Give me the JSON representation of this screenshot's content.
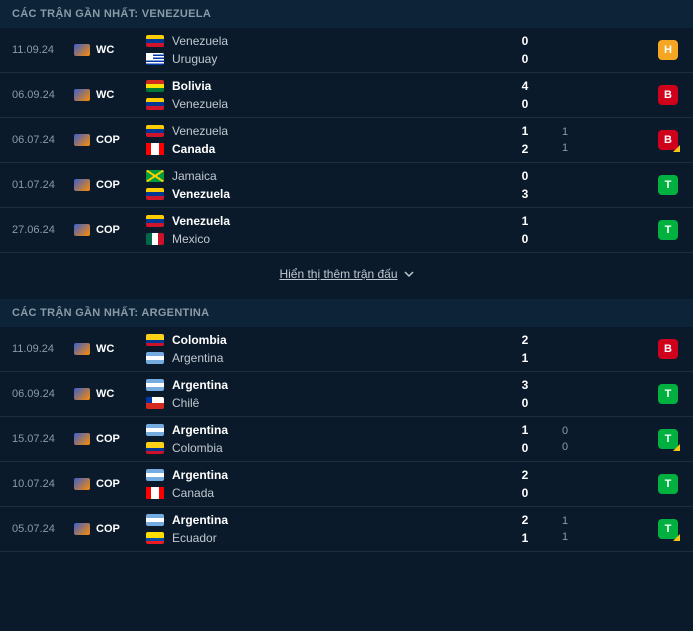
{
  "colors": {
    "background": "#0a1a2a",
    "header_bg": "#0d2438",
    "row_border": "#1a2f42",
    "text_muted": "#8a9ba8",
    "text_normal": "#c0c8d0",
    "text_winner": "#ffffff",
    "badge_H": "#f5a623",
    "badge_B": "#d0021b",
    "badge_T": "#00b140",
    "corner_accent": "#f5c518"
  },
  "typography": {
    "font_family": "Arial, sans-serif",
    "header_fontsize": 11,
    "team_fontsize": 12,
    "date_fontsize": 11,
    "score_fontsize": 12
  },
  "show_more_label": "Hiển thị thêm trận đấu",
  "sections": [
    {
      "title": "CÁC TRẬN GẦN NHẤT: VENEZUELA",
      "matches": [
        {
          "date": "11.09.24",
          "comp": "WC",
          "home": {
            "name": "Venezuela",
            "flag": "ven",
            "winner": false
          },
          "away": {
            "name": "Uruguay",
            "flag": "uru",
            "winner": false
          },
          "score_home": "0",
          "score_away": "0",
          "extra_home": "",
          "extra_away": "",
          "badge": "H",
          "badge_corner": false
        },
        {
          "date": "06.09.24",
          "comp": "WC",
          "home": {
            "name": "Bolivia",
            "flag": "bol",
            "winner": true
          },
          "away": {
            "name": "Venezuela",
            "flag": "ven",
            "winner": false
          },
          "score_home": "4",
          "score_away": "0",
          "extra_home": "",
          "extra_away": "",
          "badge": "B",
          "badge_corner": false
        },
        {
          "date": "06.07.24",
          "comp": "COP",
          "home": {
            "name": "Venezuela",
            "flag": "ven",
            "winner": false
          },
          "away": {
            "name": "Canada",
            "flag": "can",
            "winner": true
          },
          "score_home": "1",
          "score_away": "2",
          "extra_home": "1",
          "extra_away": "1",
          "badge": "B",
          "badge_corner": true
        },
        {
          "date": "01.07.24",
          "comp": "COP",
          "home": {
            "name": "Jamaica",
            "flag": "jam",
            "winner": false
          },
          "away": {
            "name": "Venezuela",
            "flag": "ven",
            "winner": true
          },
          "score_home": "0",
          "score_away": "3",
          "extra_home": "",
          "extra_away": "",
          "badge": "T",
          "badge_corner": false
        },
        {
          "date": "27.06.24",
          "comp": "COP",
          "home": {
            "name": "Venezuela",
            "flag": "ven",
            "winner": true
          },
          "away": {
            "name": "Mexico",
            "flag": "mex",
            "winner": false
          },
          "score_home": "1",
          "score_away": "0",
          "extra_home": "",
          "extra_away": "",
          "badge": "T",
          "badge_corner": false
        }
      ]
    },
    {
      "title": "CÁC TRẬN GẦN NHẤT: ARGENTINA",
      "matches": [
        {
          "date": "11.09.24",
          "comp": "WC",
          "home": {
            "name": "Colombia",
            "flag": "col",
            "winner": true
          },
          "away": {
            "name": "Argentina",
            "flag": "arg",
            "winner": false
          },
          "score_home": "2",
          "score_away": "1",
          "extra_home": "",
          "extra_away": "",
          "badge": "B",
          "badge_corner": false
        },
        {
          "date": "06.09.24",
          "comp": "WC",
          "home": {
            "name": "Argentina",
            "flag": "arg",
            "winner": true
          },
          "away": {
            "name": "Chilê",
            "flag": "chi",
            "winner": false
          },
          "score_home": "3",
          "score_away": "0",
          "extra_home": "",
          "extra_away": "",
          "badge": "T",
          "badge_corner": false
        },
        {
          "date": "15.07.24",
          "comp": "COP",
          "home": {
            "name": "Argentina",
            "flag": "arg",
            "winner": true
          },
          "away": {
            "name": "Colombia",
            "flag": "col",
            "winner": false
          },
          "score_home": "1",
          "score_away": "0",
          "extra_home": "0",
          "extra_away": "0",
          "badge": "T",
          "badge_corner": true
        },
        {
          "date": "10.07.24",
          "comp": "COP",
          "home": {
            "name": "Argentina",
            "flag": "arg",
            "winner": true
          },
          "away": {
            "name": "Canada",
            "flag": "can",
            "winner": false
          },
          "score_home": "2",
          "score_away": "0",
          "extra_home": "",
          "extra_away": "",
          "badge": "T",
          "badge_corner": false
        },
        {
          "date": "05.07.24",
          "comp": "COP",
          "home": {
            "name": "Argentina",
            "flag": "arg",
            "winner": true
          },
          "away": {
            "name": "Ecuador",
            "flag": "ecu",
            "winner": false
          },
          "score_home": "2",
          "score_away": "1",
          "extra_home": "1",
          "extra_away": "1",
          "badge": "T",
          "badge_corner": true
        }
      ]
    }
  ]
}
